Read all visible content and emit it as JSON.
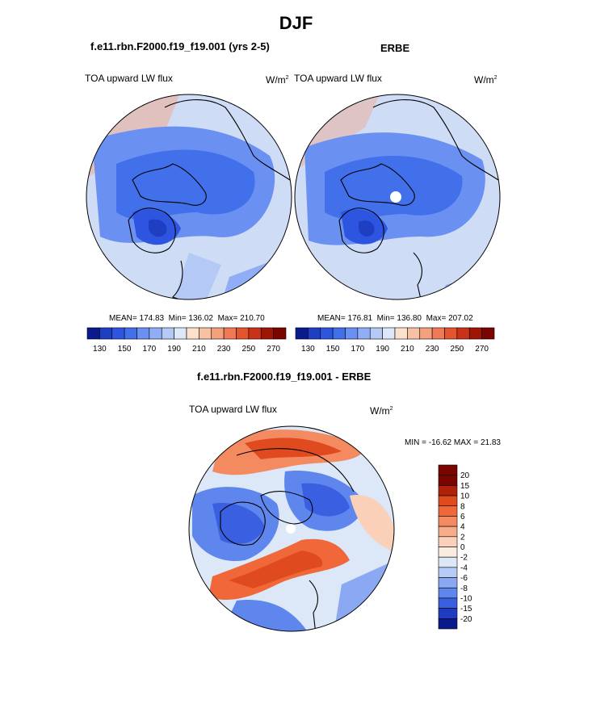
{
  "figure": {
    "season": "DJF",
    "model_title": "f.e11.rbn.F2000.f19_f19.001 (yrs 2-5)",
    "obs_title": "ERBE",
    "diff_title": "f.e11.rbn.F2000.f19_f19.001 - ERBE"
  },
  "panels": {
    "model": {
      "variable": "TOA upward LW flux",
      "units": "W/m",
      "units_exp": "2",
      "mean": "174.83",
      "min": "136.02",
      "max": "210.70"
    },
    "obs": {
      "variable": "TOA upward LW flux",
      "units": "W/m",
      "units_exp": "2",
      "mean": "176.81",
      "min": "136.80",
      "max": "207.02"
    },
    "diff": {
      "variable": "TOA upward LW flux",
      "units": "W/m",
      "units_exp": "2",
      "min": "-16.62",
      "max": "21.83"
    }
  },
  "stats_labels": {
    "mean": "MEAN= ",
    "min": "Min= ",
    "max": "Max= ",
    "min_upper": "MIN = ",
    "max_upper": "MAX = "
  },
  "colorbar_abs": {
    "ticks": [
      "130",
      "150",
      "170",
      "190",
      "210",
      "230",
      "250",
      "270"
    ],
    "colors": [
      "#0a1a8c",
      "#1f3fc2",
      "#2d55e0",
      "#4170ea",
      "#6a90f2",
      "#90aef5",
      "#b5c9f6",
      "#dce7f7",
      "#fbe0cc",
      "#f7c1a3",
      "#f4a07d",
      "#ef7a55",
      "#e4552e",
      "#c93218",
      "#a01606",
      "#7a0400"
    ]
  },
  "colorbar_diff": {
    "labels": [
      "20",
      "15",
      "10",
      "8",
      "6",
      "4",
      "2",
      "0",
      "-2",
      "-4",
      "-6",
      "-8",
      "-10",
      "-15",
      "-20"
    ],
    "colors": [
      "#7a0400",
      "#b1200b",
      "#e04a1f",
      "#f0683a",
      "#f48a5f",
      "#f7ab88",
      "#fad0b8",
      "#fbece0",
      "#dce7f7",
      "#b6cbf6",
      "#8aa9f2",
      "#5f86ec",
      "#3a5fe0",
      "#1f3bbf",
      "#0a1a8c"
    ]
  },
  "map_colors": {
    "ocean": "#dde8f8",
    "land_line": "#000000",
    "pole_dot": "#ffffff"
  }
}
